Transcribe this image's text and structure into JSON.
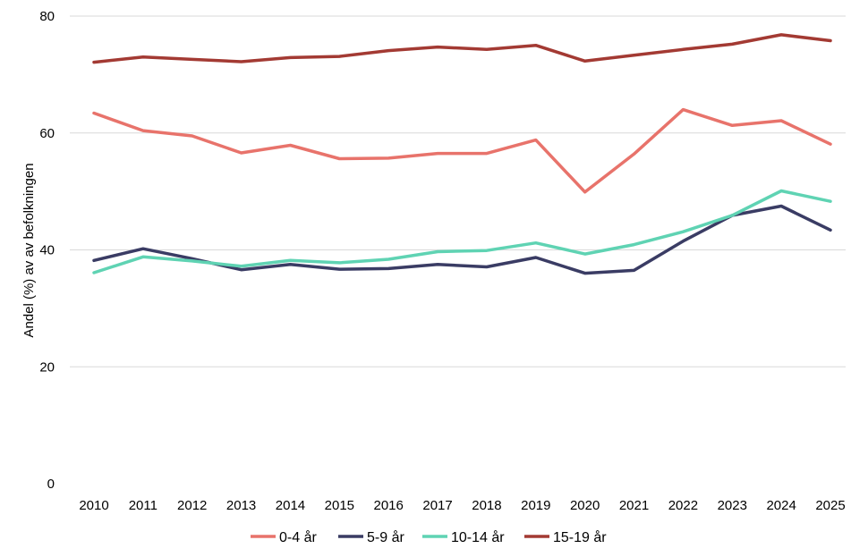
{
  "chart_data": {
    "type": "line",
    "title": "",
    "xlabel": "",
    "ylabel": "Andel (%) av av befolkningen",
    "ylim": [
      0,
      80
    ],
    "yticks": [
      0,
      20,
      40,
      60,
      80
    ],
    "grid": true,
    "legend_position": "bottom",
    "categories": [
      "2010",
      "2011",
      "2012",
      "2013",
      "2014",
      "2015",
      "2016",
      "2017",
      "2018",
      "2019",
      "2020",
      "2021",
      "2022",
      "2023",
      "2024",
      "2025"
    ],
    "series": [
      {
        "name": "0-4 år",
        "color": "#E8736B",
        "values": [
          63.4,
          60.4,
          59.5,
          56.6,
          57.9,
          55.6,
          55.7,
          56.5,
          56.5,
          58.8,
          49.9,
          56.4,
          64.0,
          61.3,
          62.1,
          58.1
        ]
      },
      {
        "name": "5-9 år",
        "color": "#3A3C64",
        "values": [
          38.2,
          40.2,
          38.5,
          36.6,
          37.5,
          36.7,
          36.8,
          37.5,
          37.1,
          38.7,
          36.0,
          36.5,
          41.5,
          45.9,
          47.5,
          43.4
        ]
      },
      {
        "name": "10-14 år",
        "color": "#5FD3B3",
        "values": [
          36.1,
          38.8,
          38.1,
          37.2,
          38.2,
          37.8,
          38.4,
          39.7,
          39.9,
          41.2,
          39.3,
          40.9,
          43.1,
          45.9,
          50.1,
          48.3
        ]
      },
      {
        "name": "15-19 år",
        "color": "#A33A33",
        "values": [
          72.1,
          73.0,
          72.6,
          72.2,
          72.9,
          73.1,
          74.1,
          74.7,
          74.3,
          75.0,
          72.3,
          73.3,
          74.3,
          75.2,
          76.8,
          75.8
        ]
      }
    ]
  }
}
